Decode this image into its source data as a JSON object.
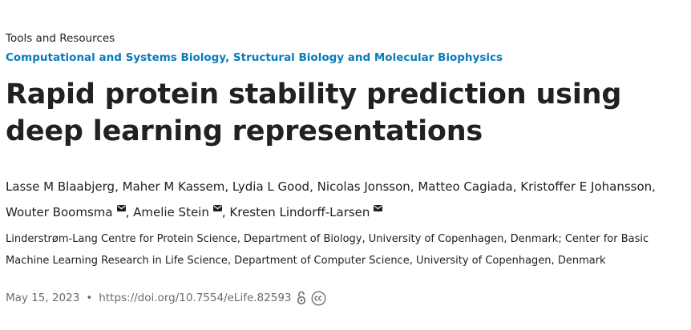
{
  "article_type": "Tools and Resources",
  "subjects": [
    "Computational and Systems Biology",
    "Structural Biology and Molecular Biophysics"
  ],
  "subject_separator": ", ",
  "title": "Rapid protein stability prediction using deep learning representations",
  "authors": [
    {
      "name": "Lasse M Blaabjerg",
      "corresponding": false
    },
    {
      "name": "Maher M Kassem",
      "corresponding": false
    },
    {
      "name": "Lydia L Good",
      "corresponding": false
    },
    {
      "name": "Nicolas Jonsson",
      "corresponding": false
    },
    {
      "name": "Matteo Cagiada",
      "corresponding": false
    },
    {
      "name": "Kristoffer E Johansson",
      "corresponding": false
    },
    {
      "name": "Wouter Boomsma",
      "corresponding": true
    },
    {
      "name": "Amelie Stein",
      "corresponding": true
    },
    {
      "name": "Kresten Lindorff-Larsen",
      "corresponding": true
    }
  ],
  "affiliations": "Linderstrøm-Lang Centre for Protein Science, Department of Biology, University of Copenhagen, Denmark; Center for Basic Machine Learning Research in Life Science, Department of Computer Science, University of Copenhagen, Denmark",
  "meta": {
    "date": "May 15, 2023",
    "separator": "•",
    "doi": "https://doi.org/10.7554/eLife.82593",
    "icons": [
      "open-access-icon",
      "creative-commons-icon"
    ]
  },
  "colors": {
    "link": "#0a7cb8",
    "text": "#212121",
    "muted": "#6b6b6b"
  }
}
